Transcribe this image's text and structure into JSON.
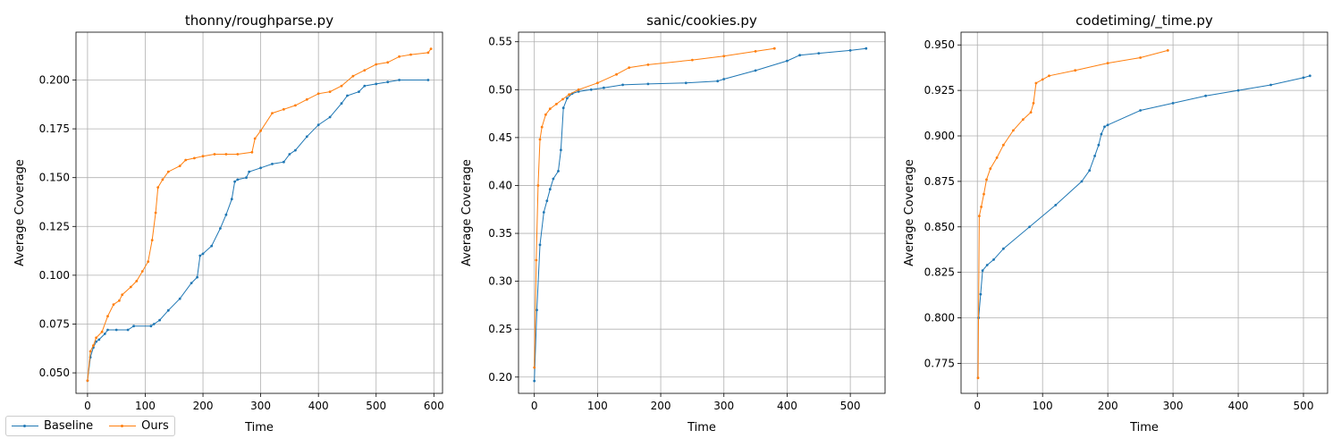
{
  "colors": {
    "baseline": "#1f77b4",
    "ours": "#ff7f0e",
    "grid": "#b0b0b0"
  },
  "legend": [
    {
      "label": "Baseline",
      "key": "baseline"
    },
    {
      "label": "Ours",
      "key": "ours"
    }
  ],
  "chart_data": [
    {
      "type": "line",
      "title": "thonny/roughparse.py",
      "xlabel": "Time",
      "ylabel": "Average Coverage",
      "xlim": [
        -20,
        615
      ],
      "ylim": [
        0.0395,
        0.2245
      ],
      "xticks": [
        0,
        100,
        200,
        300,
        400,
        500,
        600
      ],
      "yticks": [
        0.05,
        0.075,
        0.1,
        0.125,
        0.15,
        0.175,
        0.2
      ],
      "ytick_labels": [
        "0.050",
        "0.075",
        "0.100",
        "0.125",
        "0.150",
        "0.175",
        "0.200"
      ],
      "grid": true,
      "series": [
        {
          "name": "Baseline",
          "key": "baseline",
          "points": [
            [
              0,
              0.046
            ],
            [
              5,
              0.058
            ],
            [
              10,
              0.063
            ],
            [
              15,
              0.066
            ],
            [
              20,
              0.067
            ],
            [
              30,
              0.07
            ],
            [
              35,
              0.072
            ],
            [
              50,
              0.072
            ],
            [
              70,
              0.072
            ],
            [
              80,
              0.074
            ],
            [
              110,
              0.074
            ],
            [
              115,
              0.075
            ],
            [
              125,
              0.077
            ],
            [
              140,
              0.082
            ],
            [
              160,
              0.088
            ],
            [
              180,
              0.096
            ],
            [
              190,
              0.099
            ],
            [
              195,
              0.11
            ],
            [
              200,
              0.111
            ],
            [
              215,
              0.115
            ],
            [
              230,
              0.124
            ],
            [
              240,
              0.131
            ],
            [
              250,
              0.139
            ],
            [
              255,
              0.148
            ],
            [
              260,
              0.149
            ],
            [
              275,
              0.15
            ],
            [
              280,
              0.153
            ],
            [
              300,
              0.155
            ],
            [
              320,
              0.157
            ],
            [
              340,
              0.158
            ],
            [
              350,
              0.162
            ],
            [
              360,
              0.164
            ],
            [
              380,
              0.171
            ],
            [
              400,
              0.177
            ],
            [
              420,
              0.181
            ],
            [
              440,
              0.188
            ],
            [
              450,
              0.192
            ],
            [
              470,
              0.194
            ],
            [
              480,
              0.197
            ],
            [
              500,
              0.198
            ],
            [
              520,
              0.199
            ],
            [
              540,
              0.2
            ],
            [
              590,
              0.2
            ]
          ]
        },
        {
          "name": "Ours",
          "key": "ours",
          "points": [
            [
              0,
              0.046
            ],
            [
              5,
              0.061
            ],
            [
              10,
              0.064
            ],
            [
              15,
              0.068
            ],
            [
              25,
              0.071
            ],
            [
              35,
              0.079
            ],
            [
              45,
              0.085
            ],
            [
              55,
              0.087
            ],
            [
              60,
              0.09
            ],
            [
              75,
              0.094
            ],
            [
              85,
              0.097
            ],
            [
              95,
              0.102
            ],
            [
              105,
              0.107
            ],
            [
              112,
              0.118
            ],
            [
              118,
              0.132
            ],
            [
              122,
              0.145
            ],
            [
              130,
              0.149
            ],
            [
              140,
              0.153
            ],
            [
              160,
              0.156
            ],
            [
              170,
              0.159
            ],
            [
              185,
              0.16
            ],
            [
              200,
              0.161
            ],
            [
              220,
              0.162
            ],
            [
              240,
              0.162
            ],
            [
              260,
              0.162
            ],
            [
              285,
              0.163
            ],
            [
              290,
              0.17
            ],
            [
              300,
              0.174
            ],
            [
              320,
              0.183
            ],
            [
              340,
              0.185
            ],
            [
              360,
              0.187
            ],
            [
              380,
              0.19
            ],
            [
              400,
              0.193
            ],
            [
              420,
              0.194
            ],
            [
              440,
              0.197
            ],
            [
              460,
              0.202
            ],
            [
              480,
              0.205
            ],
            [
              500,
              0.208
            ],
            [
              520,
              0.209
            ],
            [
              540,
              0.212
            ],
            [
              560,
              0.213
            ],
            [
              590,
              0.214
            ],
            [
              595,
              0.216
            ]
          ]
        }
      ]
    },
    {
      "type": "line",
      "title": "sanic/cookies.py",
      "xlabel": "Time",
      "ylabel": "Average Coverage",
      "xlim": [
        -25,
        555
      ],
      "ylim": [
        0.183,
        0.56
      ],
      "xticks": [
        0,
        100,
        200,
        300,
        400,
        500
      ],
      "yticks": [
        0.2,
        0.25,
        0.3,
        0.35,
        0.4,
        0.45,
        0.5,
        0.55
      ],
      "ytick_labels": [
        "0.20",
        "0.25",
        "0.30",
        "0.35",
        "0.40",
        "0.45",
        "0.50",
        "0.55"
      ],
      "grid": true,
      "series": [
        {
          "name": "Baseline",
          "key": "baseline",
          "points": [
            [
              0,
              0.196
            ],
            [
              4,
              0.27
            ],
            [
              9,
              0.338
            ],
            [
              15,
              0.372
            ],
            [
              20,
              0.384
            ],
            [
              25,
              0.396
            ],
            [
              30,
              0.407
            ],
            [
              38,
              0.415
            ],
            [
              42,
              0.437
            ],
            [
              46,
              0.481
            ],
            [
              52,
              0.491
            ],
            [
              60,
              0.496
            ],
            [
              70,
              0.498
            ],
            [
              90,
              0.5
            ],
            [
              110,
              0.502
            ],
            [
              140,
              0.505
            ],
            [
              180,
              0.506
            ],
            [
              240,
              0.507
            ],
            [
              290,
              0.509
            ],
            [
              300,
              0.511
            ],
            [
              350,
              0.52
            ],
            [
              400,
              0.53
            ],
            [
              420,
              0.536
            ],
            [
              450,
              0.538
            ],
            [
              500,
              0.541
            ],
            [
              525,
              0.543
            ]
          ]
        },
        {
          "name": "Ours",
          "key": "ours",
          "points": [
            [
              0,
              0.21
            ],
            [
              3,
              0.322
            ],
            [
              6,
              0.4
            ],
            [
              9,
              0.448
            ],
            [
              12,
              0.461
            ],
            [
              18,
              0.474
            ],
            [
              25,
              0.48
            ],
            [
              35,
              0.485
            ],
            [
              45,
              0.49
            ],
            [
              55,
              0.495
            ],
            [
              70,
              0.5
            ],
            [
              100,
              0.507
            ],
            [
              130,
              0.516
            ],
            [
              150,
              0.523
            ],
            [
              180,
              0.526
            ],
            [
              250,
              0.531
            ],
            [
              300,
              0.535
            ],
            [
              350,
              0.54
            ],
            [
              380,
              0.543
            ]
          ]
        }
      ]
    },
    {
      "type": "line",
      "title": "codetiming/_time.py",
      "xlabel": "Time",
      "ylabel": "Average Coverage",
      "xlim": [
        -25,
        537
      ],
      "ylim": [
        0.7585,
        0.957
      ],
      "xticks": [
        0,
        100,
        200,
        300,
        400,
        500
      ],
      "yticks": [
        0.775,
        0.8,
        0.825,
        0.85,
        0.875,
        0.9,
        0.925,
        0.95
      ],
      "ytick_labels": [
        "0.775",
        "0.800",
        "0.825",
        "0.850",
        "0.875",
        "0.900",
        "0.925",
        "0.950"
      ],
      "grid": true,
      "series": [
        {
          "name": "Baseline",
          "key": "baseline",
          "points": [
            [
              2,
              0.8
            ],
            [
              5,
              0.813
            ],
            [
              8,
              0.826
            ],
            [
              15,
              0.829
            ],
            [
              25,
              0.832
            ],
            [
              40,
              0.838
            ],
            [
              80,
              0.85
            ],
            [
              120,
              0.862
            ],
            [
              160,
              0.875
            ],
            [
              172,
              0.881
            ],
            [
              180,
              0.889
            ],
            [
              186,
              0.895
            ],
            [
              190,
              0.901
            ],
            [
              195,
              0.905
            ],
            [
              200,
              0.906
            ],
            [
              250,
              0.914
            ],
            [
              300,
              0.918
            ],
            [
              350,
              0.922
            ],
            [
              400,
              0.925
            ],
            [
              450,
              0.928
            ],
            [
              500,
              0.932
            ],
            [
              510,
              0.933
            ]
          ]
        },
        {
          "name": "Ours",
          "key": "ours",
          "points": [
            [
              1,
              0.767
            ],
            [
              3,
              0.856
            ],
            [
              6,
              0.861
            ],
            [
              10,
              0.868
            ],
            [
              14,
              0.876
            ],
            [
              20,
              0.882
            ],
            [
              30,
              0.888
            ],
            [
              40,
              0.895
            ],
            [
              55,
              0.903
            ],
            [
              70,
              0.909
            ],
            [
              82,
              0.913
            ],
            [
              86,
              0.918
            ],
            [
              90,
              0.929
            ],
            [
              100,
              0.931
            ],
            [
              110,
              0.933
            ],
            [
              150,
              0.936
            ],
            [
              200,
              0.94
            ],
            [
              250,
              0.943
            ],
            [
              292,
              0.947
            ]
          ]
        }
      ]
    }
  ]
}
